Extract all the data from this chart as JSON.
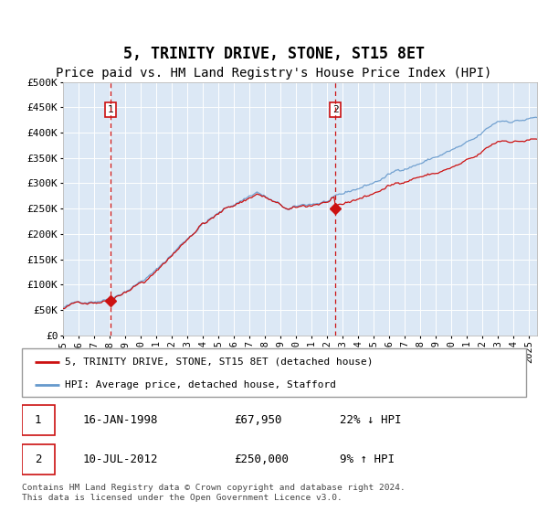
{
  "title": "5, TRINITY DRIVE, STONE, ST15 8ET",
  "subtitle": "Price paid vs. HM Land Registry's House Price Index (HPI)",
  "title_fontsize": 12,
  "subtitle_fontsize": 10,
  "plot_bg_color": "#dce8f5",
  "grid_color": "#c8d8e8",
  "xmin_year": 1995.0,
  "xmax_year": 2025.5,
  "ymin": 0,
  "ymax": 500000,
  "yticks": [
    0,
    50000,
    100000,
    150000,
    200000,
    250000,
    300000,
    350000,
    400000,
    450000,
    500000
  ],
  "ytick_labels": [
    "£0",
    "£50K",
    "£100K",
    "£150K",
    "£200K",
    "£250K",
    "£300K",
    "£350K",
    "£400K",
    "£450K",
    "£500K"
  ],
  "xtick_years": [
    1995,
    1996,
    1997,
    1998,
    1999,
    2000,
    2001,
    2002,
    2003,
    2004,
    2005,
    2006,
    2007,
    2008,
    2009,
    2010,
    2011,
    2012,
    2013,
    2014,
    2015,
    2016,
    2017,
    2018,
    2019,
    2020,
    2021,
    2022,
    2023,
    2024,
    2025
  ],
  "hpi_color": "#6699cc",
  "price_color": "#cc1111",
  "dashed_line_color": "#cc1111",
  "sale1_x": 1998.04,
  "sale1_y": 67950,
  "sale1_label": "1",
  "sale2_x": 2012.52,
  "sale2_y": 250000,
  "sale2_label": "2",
  "legend_entries": [
    "5, TRINITY DRIVE, STONE, ST15 8ET (detached house)",
    "HPI: Average price, detached house, Stafford"
  ],
  "annotation1_date": "16-JAN-1998",
  "annotation1_price": "£67,950",
  "annotation1_hpi": "22% ↓ HPI",
  "annotation2_date": "10-JUL-2012",
  "annotation2_price": "£250,000",
  "annotation2_hpi": "9% ↑ HPI",
  "footer": "Contains HM Land Registry data © Crown copyright and database right 2024.\nThis data is licensed under the Open Government Licence v3.0."
}
